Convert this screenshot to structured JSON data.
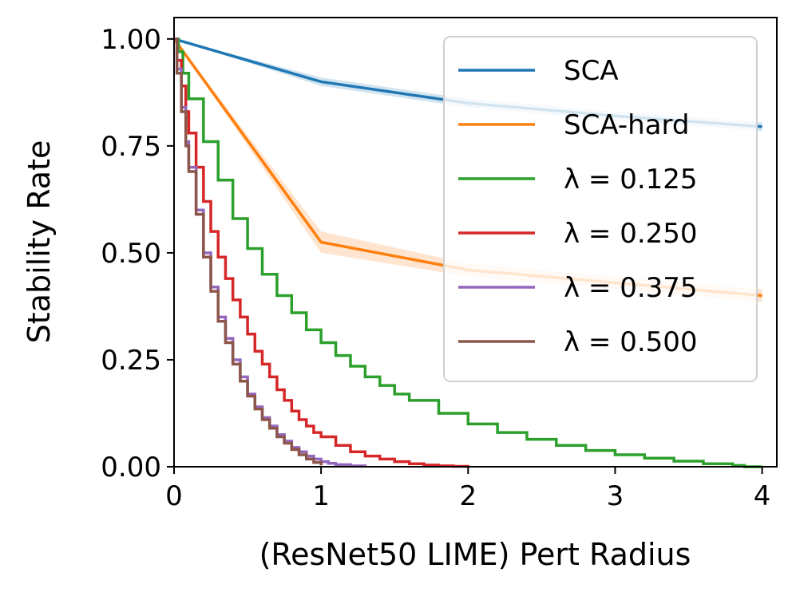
{
  "chart_data": {
    "type": "line",
    "title": "",
    "xlabel": "(ResNet50 LIME) Pert Radius",
    "ylabel": "Stability Rate",
    "xlim": [
      0,
      4.1
    ],
    "ylim": [
      0,
      1.05
    ],
    "xticks": [
      0,
      1,
      2,
      3,
      4
    ],
    "xtick_labels": [
      "0",
      "1",
      "2",
      "3",
      "4"
    ],
    "yticks": [
      0,
      0.25,
      0.5,
      0.75,
      1.0
    ],
    "ytick_labels": [
      "0.00",
      "0.25",
      "0.50",
      "0.75",
      "1.00"
    ],
    "grid": false,
    "legend_position": "top-right",
    "series": [
      {
        "name": "SCA",
        "legend_label": "SCA",
        "color": "#1f77b4",
        "style": "line",
        "x": [
          0,
          1,
          2,
          3,
          4
        ],
        "y": [
          1.0,
          0.9,
          0.85,
          0.82,
          0.795
        ],
        "band_low": [
          1.0,
          0.89,
          0.84,
          0.81,
          0.785
        ],
        "band_high": [
          1.0,
          0.91,
          0.86,
          0.83,
          0.805
        ]
      },
      {
        "name": "SCA-hard",
        "legend_label": "SCA-hard",
        "color": "#ff7f0e",
        "style": "line",
        "x": [
          0,
          1,
          2,
          3,
          4
        ],
        "y": [
          1.0,
          0.525,
          0.46,
          0.43,
          0.4
        ],
        "band_low": [
          1.0,
          0.5,
          0.445,
          0.415,
          0.385
        ],
        "band_high": [
          1.0,
          0.55,
          0.475,
          0.445,
          0.415
        ]
      },
      {
        "name": "lambda_0.125",
        "legend_label": "λ = 0.125",
        "color": "#2ca02c",
        "style": "step",
        "x": [
          0.0,
          0.03,
          0.06,
          0.1,
          0.2,
          0.3,
          0.4,
          0.5,
          0.6,
          0.7,
          0.8,
          0.9,
          1.0,
          1.1,
          1.2,
          1.3,
          1.4,
          1.5,
          1.6,
          1.8,
          2.0,
          2.2,
          2.4,
          2.6,
          2.8,
          3.0,
          3.2,
          3.4,
          3.6,
          3.8,
          3.88,
          4.0
        ],
        "y": [
          1.0,
          0.97,
          0.92,
          0.86,
          0.76,
          0.67,
          0.58,
          0.51,
          0.45,
          0.4,
          0.36,
          0.32,
          0.29,
          0.26,
          0.235,
          0.21,
          0.19,
          0.17,
          0.155,
          0.125,
          0.1,
          0.08,
          0.064,
          0.05,
          0.038,
          0.028,
          0.02,
          0.013,
          0.007,
          0.003,
          0.0,
          0.0
        ]
      },
      {
        "name": "lambda_0.250",
        "legend_label": "λ = 0.250",
        "color": "#d62728",
        "style": "step",
        "x": [
          0.0,
          0.02,
          0.05,
          0.08,
          0.1,
          0.15,
          0.2,
          0.25,
          0.3,
          0.35,
          0.4,
          0.45,
          0.5,
          0.55,
          0.6,
          0.65,
          0.7,
          0.75,
          0.8,
          0.85,
          0.9,
          0.95,
          1.0,
          1.1,
          1.2,
          1.3,
          1.4,
          1.5,
          1.6,
          1.7,
          1.8,
          1.9,
          2.0
        ],
        "y": [
          1.0,
          0.95,
          0.89,
          0.83,
          0.78,
          0.7,
          0.62,
          0.55,
          0.49,
          0.44,
          0.39,
          0.35,
          0.31,
          0.27,
          0.24,
          0.21,
          0.18,
          0.155,
          0.13,
          0.11,
          0.095,
          0.08,
          0.07,
          0.05,
          0.035,
          0.025,
          0.018,
          0.012,
          0.007,
          0.004,
          0.002,
          0.001,
          0.0
        ]
      },
      {
        "name": "lambda_0.375",
        "legend_label": "λ = 0.375",
        "color": "#9467bd",
        "style": "step",
        "x": [
          0.0,
          0.02,
          0.05,
          0.08,
          0.1,
          0.15,
          0.2,
          0.25,
          0.3,
          0.35,
          0.4,
          0.45,
          0.5,
          0.55,
          0.6,
          0.65,
          0.7,
          0.75,
          0.8,
          0.85,
          0.9,
          0.95,
          1.0,
          1.05,
          1.1,
          1.2,
          1.3
        ],
        "y": [
          1.0,
          0.93,
          0.84,
          0.76,
          0.7,
          0.6,
          0.5,
          0.42,
          0.35,
          0.3,
          0.25,
          0.21,
          0.17,
          0.14,
          0.115,
          0.095,
          0.075,
          0.06,
          0.045,
          0.035,
          0.025,
          0.018,
          0.012,
          0.008,
          0.005,
          0.002,
          0.0
        ]
      },
      {
        "name": "lambda_0.500",
        "legend_label": "λ = 0.500",
        "color": "#8c564b",
        "style": "step",
        "x": [
          0.0,
          0.02,
          0.05,
          0.08,
          0.1,
          0.15,
          0.2,
          0.25,
          0.3,
          0.35,
          0.4,
          0.45,
          0.5,
          0.55,
          0.6,
          0.65,
          0.7,
          0.75,
          0.8,
          0.85,
          0.9,
          0.95,
          1.0
        ],
        "y": [
          1.0,
          0.92,
          0.83,
          0.75,
          0.69,
          0.59,
          0.49,
          0.41,
          0.34,
          0.29,
          0.24,
          0.2,
          0.165,
          0.135,
          0.11,
          0.09,
          0.07,
          0.055,
          0.04,
          0.028,
          0.018,
          0.01,
          0.003
        ]
      }
    ]
  }
}
